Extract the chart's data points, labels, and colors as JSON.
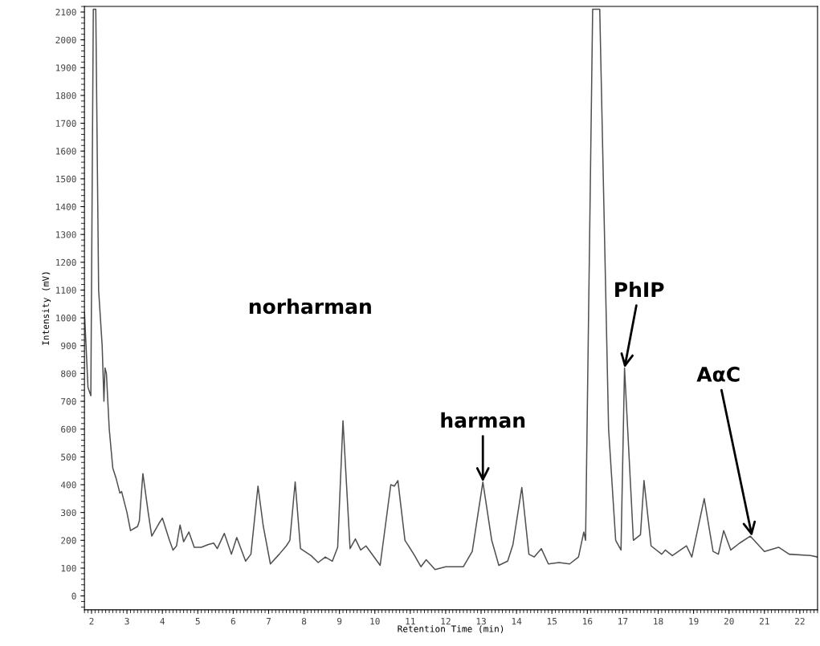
{
  "chart_data": {
    "type": "line",
    "xlabel": "Retention Time (min)",
    "ylabel": "Intensity (mV)",
    "x": [
      1.8,
      1.9,
      1.98,
      2.05,
      2.12,
      2.2,
      2.3,
      2.35,
      2.38,
      2.42,
      2.5,
      2.6,
      2.7,
      2.8,
      2.85,
      3.0,
      3.1,
      3.3,
      3.35,
      3.45,
      3.6,
      3.7,
      3.9,
      4.0,
      4.2,
      4.3,
      4.4,
      4.5,
      4.6,
      4.75,
      4.9,
      5.1,
      5.3,
      5.45,
      5.55,
      5.75,
      5.95,
      6.1,
      6.35,
      6.5,
      6.7,
      6.85,
      7.05,
      7.3,
      7.5,
      7.6,
      7.75,
      7.9,
      8.2,
      8.4,
      8.6,
      8.8,
      8.95,
      9.1,
      9.3,
      9.45,
      9.6,
      9.75,
      10.15,
      10.45,
      10.55,
      10.65,
      10.85,
      11.1,
      11.3,
      11.45,
      11.7,
      12.0,
      12.5,
      12.75,
      13.05,
      13.3,
      13.5,
      13.75,
      13.9,
      14.15,
      14.35,
      14.5,
      14.7,
      14.9,
      15.2,
      15.5,
      15.75,
      15.9,
      15.95,
      16.15,
      16.35,
      16.6,
      16.8,
      16.95,
      17.05,
      17.3,
      17.5,
      17.6,
      17.8,
      18.1,
      18.2,
      18.4,
      18.8,
      18.95,
      19.3,
      19.55,
      19.7,
      19.85,
      20.05,
      20.3,
      20.6,
      21.0,
      21.4,
      21.7,
      22.3,
      22.5
    ],
    "series": [
      {
        "color": "#505050",
        "values": [
          1020,
          750,
          720,
          2110,
          2110,
          1100,
          900,
          700,
          820,
          800,
          600,
          460,
          420,
          370,
          375,
          300,
          235,
          250,
          270,
          440,
          300,
          215,
          260,
          280,
          200,
          165,
          180,
          255,
          195,
          230,
          175,
          175,
          185,
          190,
          170,
          225,
          150,
          210,
          125,
          150,
          395,
          250,
          115,
          150,
          180,
          200,
          410,
          170,
          145,
          120,
          140,
          125,
          175,
          630,
          170,
          205,
          165,
          180,
          110,
          400,
          395,
          415,
          200,
          150,
          105,
          130,
          95,
          105,
          105,
          160,
          410,
          200,
          110,
          125,
          185,
          390,
          150,
          140,
          170,
          115,
          120,
          115,
          140,
          230,
          200,
          2110,
          2110,
          600,
          200,
          165,
          820,
          200,
          220,
          415,
          180,
          150,
          165,
          145,
          180,
          140,
          350,
          160,
          150,
          235,
          165,
          190,
          215,
          160,
          175,
          150,
          145,
          140
        ]
      }
    ],
    "xlim": [
      1.8,
      22.5
    ],
    "ylim": [
      -50,
      2120
    ],
    "xticks": [
      2,
      3,
      4,
      5,
      6,
      7,
      8,
      9,
      10,
      11,
      12,
      13,
      14,
      15,
      16,
      17,
      18,
      19,
      20,
      21,
      22
    ],
    "yticks": [
      0,
      100,
      200,
      300,
      400,
      500,
      600,
      700,
      800,
      900,
      1000,
      1100,
      1200,
      1300,
      1400,
      1500,
      1600,
      1700,
      1800,
      1900,
      2000,
      2100
    ],
    "grid": false,
    "legend": false,
    "marker": "none",
    "line_style": "solid",
    "annotations": [
      "norharman",
      {
        "text": "harman",
        "x": 13.05,
        "y": 410
      },
      {
        "text": "PhIP",
        "x": 17.05,
        "y": 820
      },
      {
        "text": "AαC",
        "x": 20.65,
        "y": 215
      }
    ]
  }
}
